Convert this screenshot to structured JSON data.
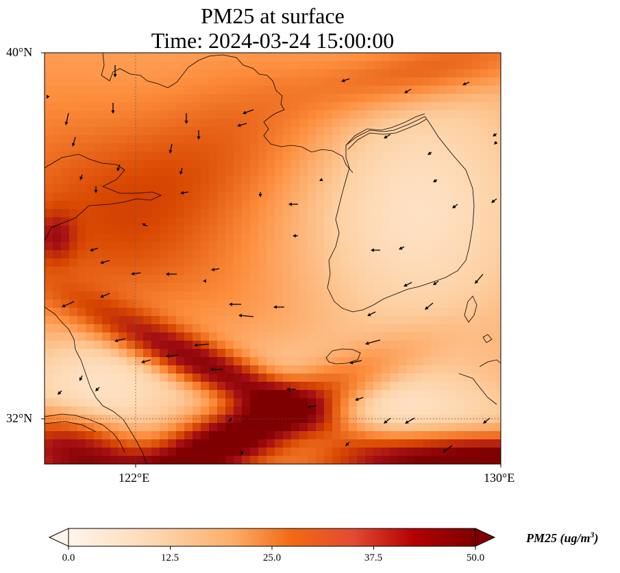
{
  "title": {
    "line1": "PM25 at surface",
    "line2": "Time: 2024-03-24 15:00:00"
  },
  "axes": {
    "lat_ticks": [
      "40°N",
      "32°N"
    ],
    "lon_ticks": [
      "122°E",
      "130°E"
    ]
  },
  "colorbar": {
    "label": "PM25 (ug/m",
    "label_sup": "3",
    "label_close": ")",
    "ticks": [
      "0.0",
      "12.5",
      "25.0",
      "37.5",
      "50.0"
    ],
    "range": [
      0,
      50
    ],
    "colormap": [
      "#fff5eb",
      "#fdd0a2",
      "#fd8d3c",
      "#d94801",
      "#a50f15",
      "#7f0000"
    ],
    "extend": "both"
  },
  "map": {
    "lon_range": [
      120,
      130
    ],
    "lat_range": [
      31,
      40
    ],
    "gridlines": "dotted at 122°E and 32°N"
  }
}
